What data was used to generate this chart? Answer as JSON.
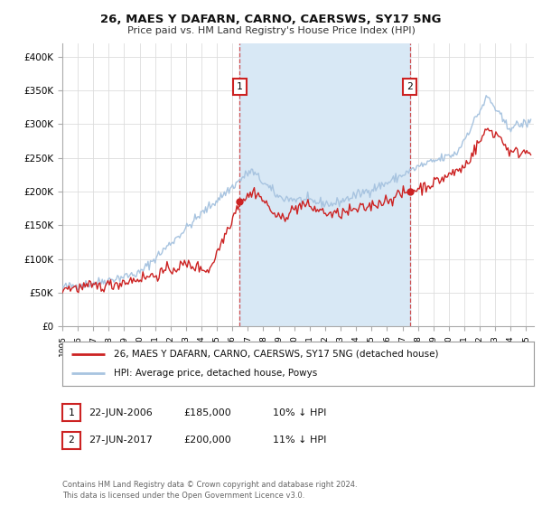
{
  "title": "26, MAES Y DAFARN, CARNO, CAERSWS, SY17 5NG",
  "subtitle": "Price paid vs. HM Land Registry's House Price Index (HPI)",
  "ylim": [
    0,
    420000
  ],
  "yticks": [
    0,
    50000,
    100000,
    150000,
    200000,
    250000,
    300000,
    350000,
    400000
  ],
  "ytick_labels": [
    "£0",
    "£50K",
    "£100K",
    "£150K",
    "£200K",
    "£250K",
    "£300K",
    "£350K",
    "£400K"
  ],
  "xlim_start": 1995.0,
  "xlim_end": 2025.5,
  "xticks": [
    1995,
    1996,
    1997,
    1998,
    1999,
    2000,
    2001,
    2002,
    2003,
    2004,
    2005,
    2006,
    2007,
    2008,
    2009,
    2010,
    2011,
    2012,
    2013,
    2014,
    2015,
    2016,
    2017,
    2018,
    2019,
    2020,
    2021,
    2022,
    2023,
    2024,
    2025
  ],
  "hpi_color": "#a8c4e0",
  "price_color": "#cc2222",
  "marker1_date": 2006.47,
  "marker1_price": 185000,
  "marker1_label": "1",
  "marker1_text": "22-JUN-2006",
  "marker1_amount": "£185,000",
  "marker1_pct": "10% ↓ HPI",
  "marker2_date": 2017.48,
  "marker2_price": 200000,
  "marker2_label": "2",
  "marker2_text": "27-JUN-2017",
  "marker2_amount": "£200,000",
  "marker2_pct": "11% ↓ HPI",
  "legend_line1": "26, MAES Y DAFARN, CARNO, CAERSWS, SY17 5NG (detached house)",
  "legend_line2": "HPI: Average price, detached house, Powys",
  "footer": "Contains HM Land Registry data © Crown copyright and database right 2024.\nThis data is licensed under the Open Government Licence v3.0.",
  "bg_color": "#ffffff",
  "fig_bg_color": "#ffffff",
  "grid_color": "#dddddd",
  "span_color": "#d8e8f5"
}
